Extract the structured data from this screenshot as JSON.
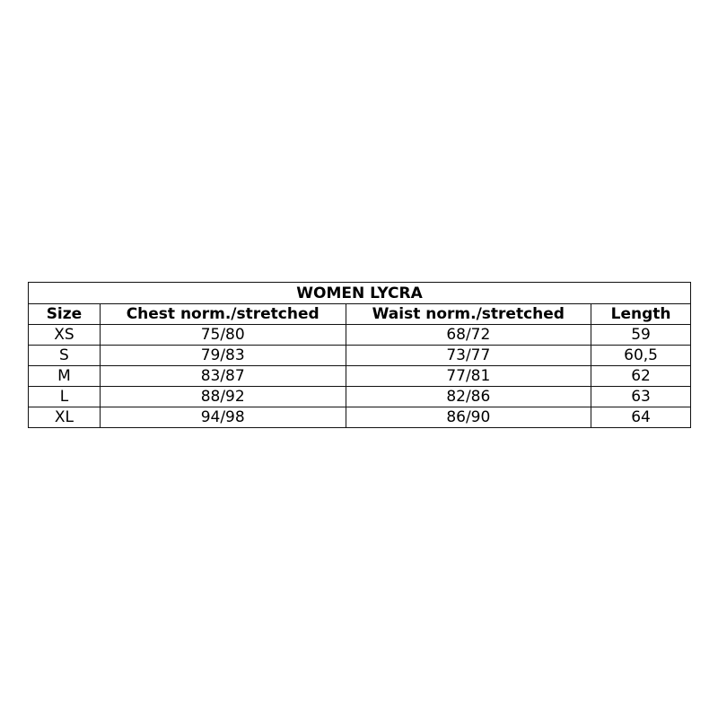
{
  "table": {
    "title": "WOMEN LYCRA",
    "headers": [
      "Size",
      "Chest norm./stretched",
      "Waist norm./stretched",
      "Length"
    ],
    "rows": [
      [
        "XS",
        "75/80",
        "68/72",
        "59"
      ],
      [
        "S",
        "79/83",
        "73/77",
        "60,5"
      ],
      [
        "M",
        "83/87",
        "77/81",
        "62"
      ],
      [
        "L",
        "88/92",
        "82/86",
        "63"
      ],
      [
        "XL",
        "94/98",
        "86/90",
        "64"
      ]
    ]
  }
}
